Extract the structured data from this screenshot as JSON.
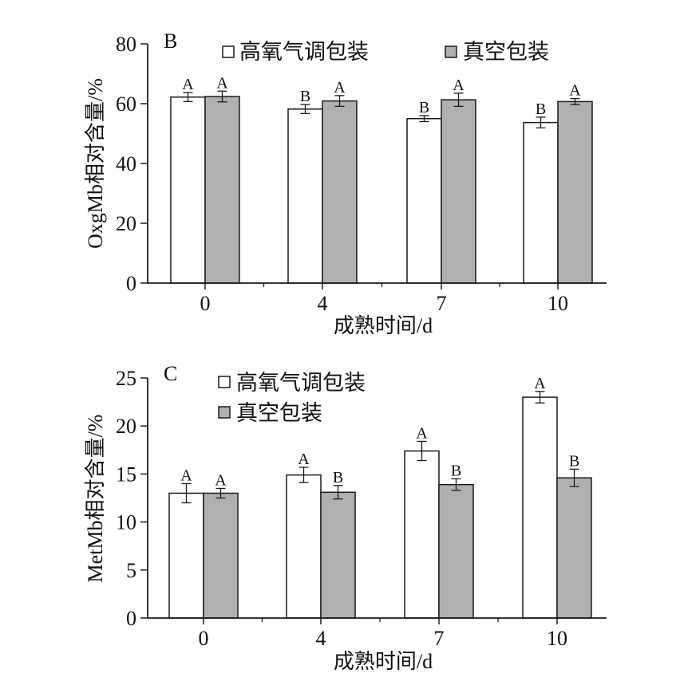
{
  "colors": {
    "series_0": "#ffffff",
    "series_1": "#b0b0b0",
    "stroke": "#1a1a1a"
  },
  "chart_data": [
    {
      "type": "bar",
      "panel_label": "B",
      "categories": [
        "0",
        "4",
        "7",
        "10"
      ],
      "series": [
        {
          "name": "高氧气调包装",
          "values": [
            62.2,
            58.2,
            55.0,
            53.7
          ],
          "errors": [
            1.5,
            1.5,
            1.0,
            1.8
          ],
          "labels": [
            "A",
            "B",
            "B",
            "B"
          ]
        },
        {
          "name": "真空包装",
          "values": [
            62.4,
            60.9,
            61.3,
            60.7
          ],
          "errors": [
            1.8,
            1.8,
            2.2,
            1.0
          ],
          "labels": [
            "A",
            "A",
            "A",
            "A"
          ]
        }
      ],
      "xlabel": "成熟时间/d",
      "ylabel": "OxgMb相对含量/%",
      "ylim": [
        0,
        80
      ],
      "yticks": [
        "0",
        "20",
        "40",
        "60",
        "80"
      ],
      "legend": "top, horizontal"
    },
    {
      "type": "bar",
      "panel_label": "C",
      "categories": [
        "0",
        "4",
        "7",
        "10"
      ],
      "series": [
        {
          "name": "高氧气调包装",
          "values": [
            13.0,
            14.9,
            17.4,
            23.0
          ],
          "errors": [
            1.0,
            0.8,
            1.0,
            0.6
          ],
          "labels": [
            "A",
            "A",
            "A",
            "A"
          ]
        },
        {
          "name": "真空包装",
          "values": [
            13.0,
            13.1,
            13.9,
            14.6
          ],
          "errors": [
            0.5,
            0.7,
            0.6,
            0.9
          ],
          "labels": [
            "A",
            "B",
            "B",
            "B"
          ]
        }
      ],
      "xlabel": "成熟时间/d",
      "ylabel": "MetMb相对含量/%",
      "ylim": [
        0,
        25
      ],
      "yticks": [
        "0",
        "5",
        "10",
        "15",
        "20",
        "25"
      ],
      "legend": "top, vertical"
    }
  ]
}
